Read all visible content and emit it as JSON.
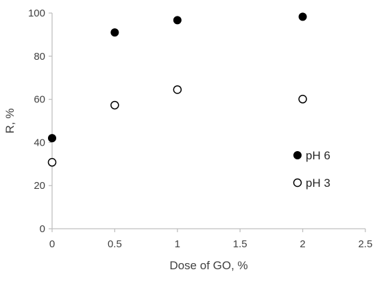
{
  "chart_data": {
    "type": "scatter",
    "title": "",
    "xlabel": "Dose of GO, %",
    "ylabel": "R, %",
    "xlim": [
      0,
      2.5
    ],
    "ylim": [
      0,
      100
    ],
    "xticks": [
      0,
      0.5,
      1,
      1.5,
      2,
      2.5
    ],
    "yticks": [
      0,
      20,
      40,
      60,
      80,
      100
    ],
    "xtick_labels": [
      "0",
      "0.5",
      "1",
      "1.5",
      "2",
      "2.5"
    ],
    "ytick_labels": [
      "0",
      "20",
      "40",
      "60",
      "80",
      "100"
    ],
    "grid": false,
    "legend_position": "right",
    "series": [
      {
        "name": "pH 6",
        "marker": "filled-circle",
        "color": "#000000",
        "x": [
          0,
          0.5,
          1,
          2
        ],
        "y": [
          42,
          91,
          96.7,
          98.3
        ]
      },
      {
        "name": "pH 3",
        "marker": "open-circle",
        "color": "#000000",
        "x": [
          0,
          0.5,
          1,
          2
        ],
        "y": [
          30.8,
          57.3,
          64.5,
          60.1
        ]
      }
    ]
  },
  "colors": {
    "axis": "#bfbfbf",
    "marker": "#000000",
    "text": "#404040"
  }
}
